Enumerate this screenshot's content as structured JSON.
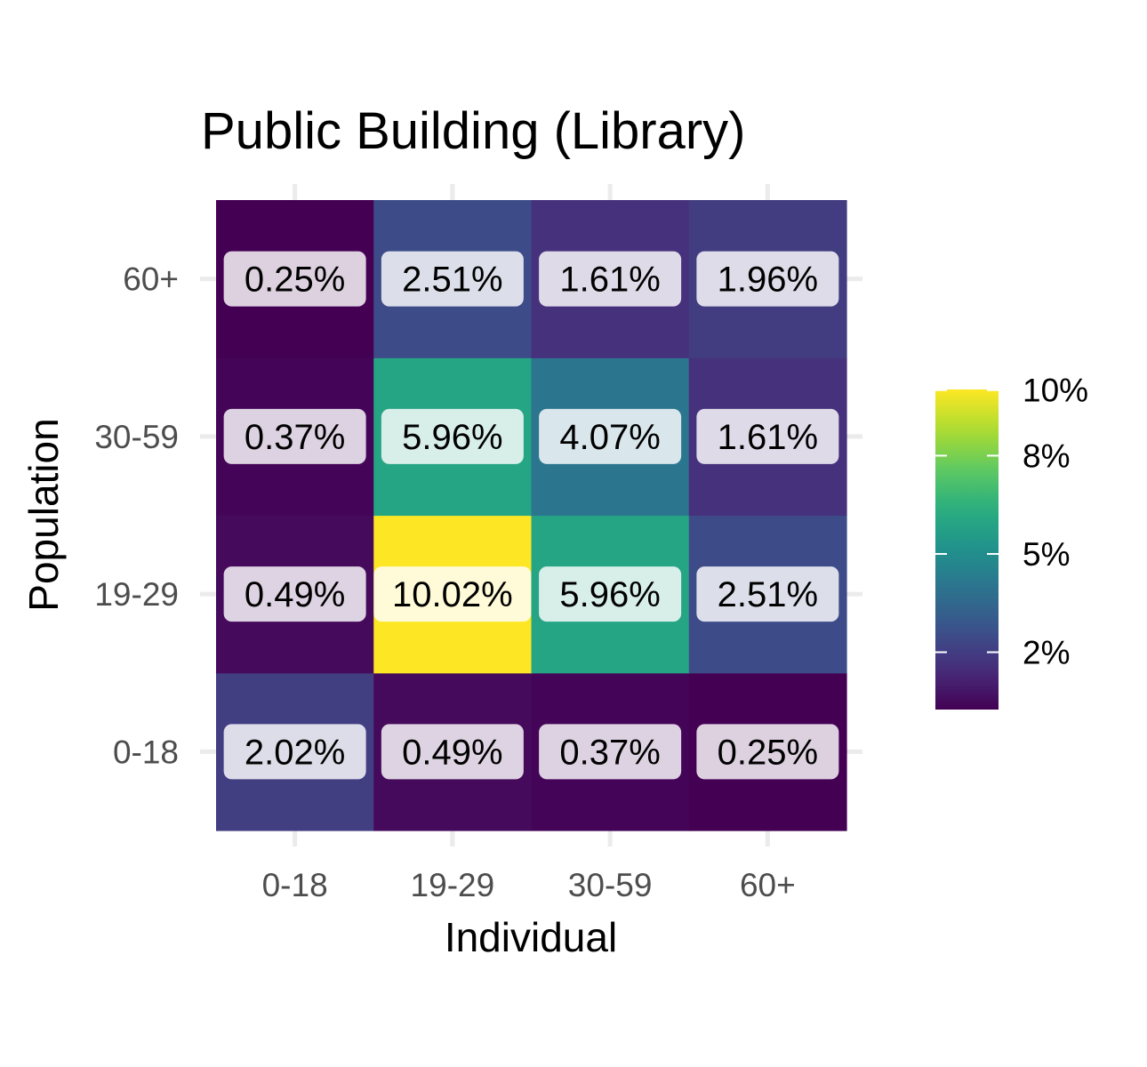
{
  "chart_data": {
    "type": "heatmap",
    "title": "Public Building (Library)",
    "xlabel": "Individual",
    "ylabel": "Population",
    "x_categories": [
      "0-18",
      "19-29",
      "30-59",
      "60+"
    ],
    "y_categories": [
      "0-18",
      "19-29",
      "30-59",
      "60+"
    ],
    "value_format": "percent",
    "values": [
      [
        2.02,
        0.49,
        0.37,
        0.25
      ],
      [
        0.49,
        10.02,
        5.96,
        2.51
      ],
      [
        0.37,
        5.96,
        4.07,
        1.61
      ],
      [
        0.25,
        2.51,
        1.61,
        1.96
      ]
    ],
    "labels": [
      [
        "2.02%",
        "0.49%",
        "0.37%",
        "0.25%"
      ],
      [
        "0.49%",
        "10.02%",
        "5.96%",
        "2.51%"
      ],
      [
        "0.37%",
        "5.96%",
        "4.07%",
        "1.61%"
      ],
      [
        "0.25%",
        "2.51%",
        "1.61%",
        "1.96%"
      ]
    ],
    "colorscale": "viridis",
    "color_range": [
      0.25,
      10.02
    ],
    "legend": {
      "position": "right",
      "ticks": [
        {
          "value": 2,
          "label": "2%"
        },
        {
          "value": 5,
          "label": "5%"
        },
        {
          "value": 8,
          "label": "8%"
        },
        {
          "value": 10,
          "label": "10%"
        }
      ]
    },
    "grid": true
  },
  "colors": {
    "viridis": [
      "#440154",
      "#472d7b",
      "#3b528b",
      "#2c728e",
      "#21918c",
      "#28ae80",
      "#5ec962",
      "#addc30",
      "#fde725"
    ],
    "grid": "#ebebeb",
    "label_box": "#ffffff"
  }
}
